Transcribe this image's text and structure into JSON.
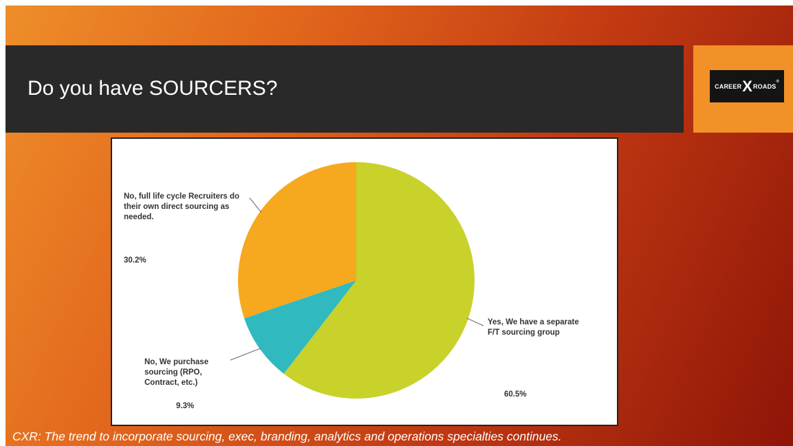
{
  "slide": {
    "title": "Do you have SOURCERS?",
    "footer": "CXR: The trend to incorporate sourcing, exec, branding, analytics and operations specialties continues."
  },
  "logo": {
    "word_left": "CAREER",
    "x": "X",
    "word_right": "ROADS",
    "mark": "®"
  },
  "colors": {
    "background_start": "#ee8e2a",
    "background_end": "#8f1508",
    "title_bar": "#292929",
    "logo_box": "#f29127"
  },
  "chart_data": {
    "type": "pie",
    "title": "",
    "slices": [
      {
        "label": "Yes, We have a separate F/T sourcing group",
        "value": 60.5,
        "value_label": "60.5%",
        "color": "#c8d22a"
      },
      {
        "label": "No, We purchase sourcing (RPO, Contract, etc.)",
        "value": 9.3,
        "value_label": "9.3%",
        "color": "#31b9c0"
      },
      {
        "label": "No, full life cycle Recruiters do their own direct sourcing as needed.",
        "value": 30.2,
        "value_label": "30.2%",
        "color": "#f6a91f"
      }
    ],
    "start_angle": "12 o'clock",
    "direction": "clockwise",
    "legend": "none"
  }
}
